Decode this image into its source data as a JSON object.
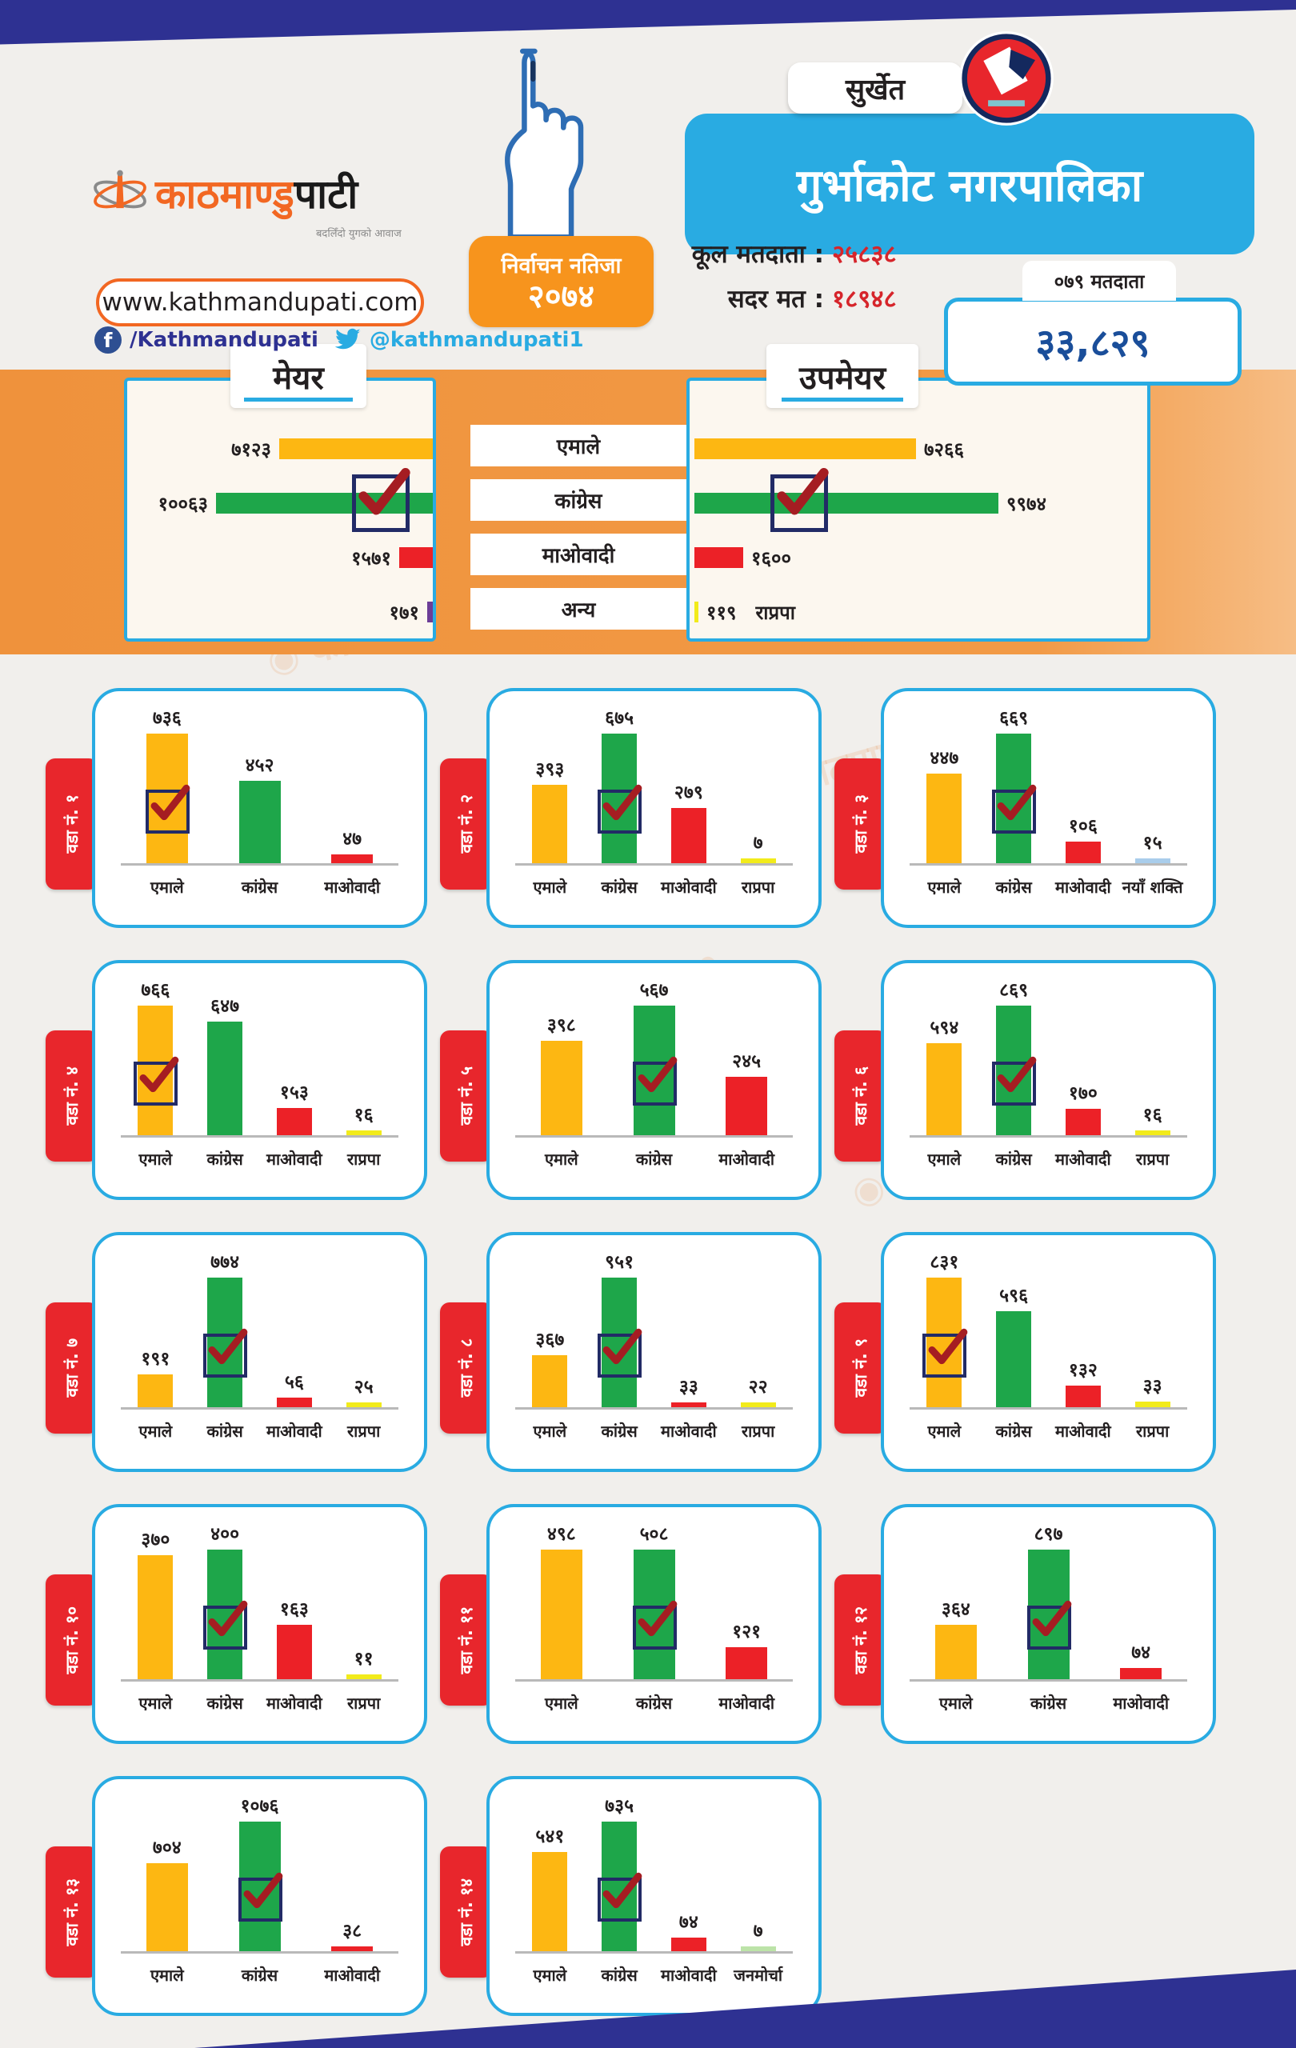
{
  "header": {
    "brand": {
      "name_orange": "काठमाण्डु",
      "name_black": "पाटी",
      "tagline": "बदलिँदो युगको आवाज",
      "website": "www.kathmandupati.com",
      "facebook": "/Kathmandupati",
      "twitter": "@kathmandupati1"
    },
    "election_badge": {
      "line1": "निर्वाचन नतिजा",
      "year": "२०७४"
    },
    "district": "सुर्खेत",
    "municipality": "गुर्भाकोट नगरपालिका",
    "stats": [
      {
        "label": "कूल मतदाता :",
        "value": "२५८३८"
      },
      {
        "label": "सदर मत :",
        "value": "१८९४८"
      }
    ],
    "voters_box": {
      "tab": "०७९ मतदाता",
      "total": "३३,८२९"
    }
  },
  "watermark_text": "काठमाण्डुपाटी",
  "colors": {
    "accent_cyan": "#29abe2",
    "band_indigo": "#2e3192",
    "band_orange": "#ef923c",
    "tab_red": "#e8262c",
    "value_red": "#d6252b",
    "total_blue": "#1a4e9a",
    "parties": {
      "एमाले": "#fdb712",
      "कांग्रेस": "#1ea64a",
      "माओवादी": "#ec2127",
      "राप्रपा": "#f2eb1b",
      "नयाँ शक्ति": "#a9cdeb",
      "जनमोर्चा": "#bce3a8",
      "अन्य": "#6c3d97"
    }
  },
  "chart_data": [
    {
      "type": "bar",
      "orientation": "horizontal",
      "title": "मेयर",
      "categories": [
        "एमाले",
        "कांग्रेस",
        "माओवादी",
        "अन्य"
      ],
      "values": [
        7123,
        10063,
        1571,
        171
      ],
      "value_labels": [
        "७१२३",
        "१००६३",
        "१५७१",
        "१७१"
      ],
      "bar_colors": [
        "#fdb712",
        "#1ea64a",
        "#ec2127",
        "#6c3d97"
      ],
      "winner_index": 1
    },
    {
      "type": "bar",
      "orientation": "horizontal",
      "title": "उपमेयर",
      "categories": [
        "एमाले",
        "कांग्रेस",
        "माओवादी",
        "अन्य"
      ],
      "values": [
        7266,
        9974,
        1600,
        119
      ],
      "value_labels": [
        "७२६६",
        "९९७४",
        "१६००",
        "११९"
      ],
      "bar_colors": [
        "#fdb712",
        "#1ea64a",
        "#ec2127",
        "#f2eb1b"
      ],
      "winner_index": 1,
      "other_note": "राप्रपा"
    },
    {
      "type": "bar",
      "title": "वडा नं. १",
      "categories": [
        "एमाले",
        "कांग्रेस",
        "माओवादी"
      ],
      "values": [
        736,
        452,
        47
      ],
      "value_labels": [
        "७३६",
        "४५२",
        "४७"
      ],
      "winner_index": 0
    },
    {
      "type": "bar",
      "title": "वडा नं. २",
      "categories": [
        "एमाले",
        "कांग्रेस",
        "माओवादी",
        "राप्रपा"
      ],
      "values": [
        393,
        675,
        279,
        7
      ],
      "value_labels": [
        "३९३",
        "६७५",
        "२७९",
        "७"
      ],
      "winner_index": 1
    },
    {
      "type": "bar",
      "title": "वडा नं. ३",
      "categories": [
        "एमाले",
        "कांग्रेस",
        "माओवादी",
        "नयाँ शक्ति"
      ],
      "values": [
        447,
        669,
        106,
        15
      ],
      "value_labels": [
        "४४७",
        "६६९",
        "१०६",
        "१५"
      ],
      "winner_index": 1
    },
    {
      "type": "bar",
      "title": "वडा नं. ४",
      "categories": [
        "एमाले",
        "कांग्रेस",
        "माओवादी",
        "राप्रपा"
      ],
      "values": [
        766,
        647,
        153,
        16
      ],
      "value_labels": [
        "७६६",
        "६४७",
        "१५३",
        "१६"
      ],
      "winner_index": 0
    },
    {
      "type": "bar",
      "title": "वडा नं. ५",
      "categories": [
        "एमाले",
        "कांग्रेस",
        "माओवादी"
      ],
      "values": [
        398,
        567,
        245
      ],
      "value_labels": [
        "३९८",
        "५६७",
        "२४५"
      ],
      "winner_index": 1
    },
    {
      "type": "bar",
      "title": "वडा नं. ६",
      "categories": [
        "एमाले",
        "कांग्रेस",
        "माओवादी",
        "राप्रपा"
      ],
      "values": [
        594,
        869,
        170,
        16
      ],
      "value_labels": [
        "५९४",
        "८६९",
        "१७०",
        "१६"
      ],
      "winner_index": 1
    },
    {
      "type": "bar",
      "title": "वडा नं. ७",
      "categories": [
        "एमाले",
        "कांग्रेस",
        "माओवादी",
        "राप्रपा"
      ],
      "values": [
        191,
        774,
        56,
        25
      ],
      "value_labels": [
        "१९१",
        "७७४",
        "५६",
        "२५"
      ],
      "winner_index": 1
    },
    {
      "type": "bar",
      "title": "वडा नं. ८",
      "categories": [
        "एमाले",
        "कांग्रेस",
        "माओवादी",
        "राप्रपा"
      ],
      "values": [
        367,
        951,
        33,
        22
      ],
      "value_labels": [
        "३६७",
        "९५१",
        "३३",
        "२२"
      ],
      "winner_index": 1
    },
    {
      "type": "bar",
      "title": "वडा नं. ९",
      "categories": [
        "एमाले",
        "कांग्रेस",
        "माओवादी",
        "राप्रपा"
      ],
      "values": [
        831,
        596,
        132,
        33
      ],
      "value_labels": [
        "८३१",
        "५९६",
        "१३२",
        "३३"
      ],
      "winner_index": 0
    },
    {
      "type": "bar",
      "title": "वडा नं. १०",
      "categories": [
        "एमाले",
        "कांग्रेस",
        "माओवादी",
        "राप्रपा"
      ],
      "values": [
        370,
        400,
        163,
        11
      ],
      "value_labels": [
        "३७०",
        "४००",
        "१६३",
        "११"
      ],
      "winner_index": 1
    },
    {
      "type": "bar",
      "title": "वडा नं. ११",
      "categories": [
        "एमाले",
        "कांग्रेस",
        "माओवादी"
      ],
      "values": [
        498,
        508,
        121
      ],
      "value_labels": [
        "४९८",
        "५०८",
        "१२१"
      ],
      "winner_index": 1
    },
    {
      "type": "bar",
      "title": "वडा नं. १२",
      "categories": [
        "एमाले",
        "कांग्रेस",
        "माओवादी"
      ],
      "values": [
        364,
        897,
        74
      ],
      "value_labels": [
        "३६४",
        "८९७",
        "७४"
      ],
      "winner_index": 1
    },
    {
      "type": "bar",
      "title": "वडा नं. १३",
      "categories": [
        "एमाले",
        "कांग्रेस",
        "माओवादी"
      ],
      "values": [
        704,
        1076,
        38
      ],
      "value_labels": [
        "७०४",
        "१०७६",
        "३८"
      ],
      "winner_index": 1
    },
    {
      "type": "bar",
      "title": "वडा नं. १४",
      "categories": [
        "एमाले",
        "कांग्रेस",
        "माओवादी",
        "जनमोर्चा"
      ],
      "values": [
        541,
        735,
        74,
        7
      ],
      "value_labels": [
        "५४१",
        "७३५",
        "७४",
        "७"
      ],
      "winner_index": 1
    }
  ]
}
